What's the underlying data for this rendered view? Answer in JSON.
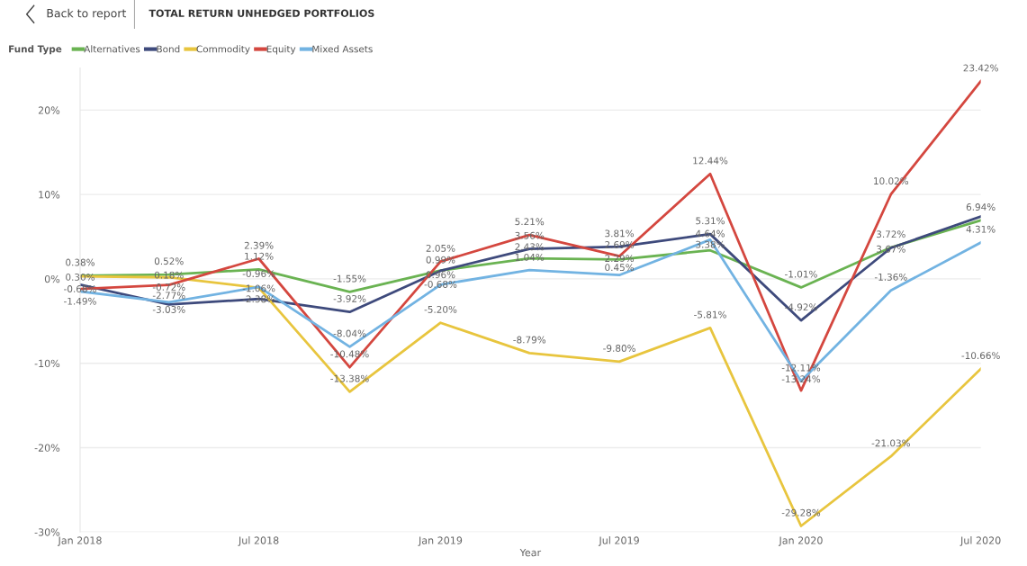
{
  "chart_data": {
    "type": "line",
    "title": "TOTAL RETURN UNHEDGED PORTFOLIOS",
    "annotations": [
      "Back to report"
    ],
    "xlabel": "Year",
    "legend_title": "Fund Type",
    "legend": "top left",
    "grid": "y",
    "marker": "none",
    "line_style": "solid",
    "x": [
      "2018-01",
      "2018-04",
      "2018-07",
      "2018-10",
      "2019-01",
      "2019-04",
      "2019-07",
      "2019-10",
      "2020-01",
      "2020-04",
      "2020-07"
    ],
    "xlim": [
      "2018-01",
      "2020-07"
    ],
    "xticks": [
      {
        "value": "2018-01",
        "label": "Jan 2018"
      },
      {
        "value": "2018-07",
        "label": "Jul 2018"
      },
      {
        "value": "2019-01",
        "label": "Jan 2019"
      },
      {
        "value": "2019-07",
        "label": "Jul 2019"
      },
      {
        "value": "2020-01",
        "label": "Jan 2020"
      },
      {
        "value": "2020-07",
        "label": "Jul 2020"
      }
    ],
    "ylim": [
      -30,
      25
    ],
    "yticks": [
      {
        "value": -30,
        "label": "-30%"
      },
      {
        "value": -20,
        "label": "-20%"
      },
      {
        "value": -10,
        "label": "-10%"
      },
      {
        "value": 0,
        "label": "0%"
      },
      {
        "value": 10,
        "label": "10%"
      },
      {
        "value": 20,
        "label": "20%"
      }
    ],
    "series": [
      {
        "name": "Alternatives",
        "color": "#6ab352",
        "values": [
          0.38,
          0.52,
          1.12,
          -1.55,
          0.99,
          2.43,
          2.29,
          3.38,
          -1.01,
          3.72,
          6.94
        ],
        "value_labels": [
          "0.38%",
          "0.52%",
          "1.12%",
          "-1.55%",
          "0.99%",
          "2.43%",
          "2.29%",
          "3.38%",
          "-1.01%",
          "3.72%",
          "6.94%"
        ]
      },
      {
        "name": "Bond",
        "color": "#3e4a7c",
        "values": [
          -0.68,
          -3.03,
          -2.38,
          -3.92,
          0.96,
          3.56,
          3.81,
          5.31,
          -4.92,
          3.67,
          7.4
        ],
        "value_labels": [
          "-0.68%",
          "-3.03%",
          "-2.38%",
          "-3.92%",
          "0.96%",
          "3.56%",
          "3.81%",
          "5.31%",
          "-4.92%",
          "3.67%",
          null
        ]
      },
      {
        "name": "Commodity",
        "color": "#e8c53e",
        "values": [
          0.3,
          0.18,
          -1.06,
          -13.38,
          -5.2,
          -8.79,
          -9.8,
          -5.81,
          -29.28,
          -21.03,
          -10.66
        ],
        "value_labels": [
          "0.30%",
          "0.18%",
          "-1.06%",
          "-13.38%",
          "-5.20%",
          "-8.79%",
          "-9.80%",
          "-5.81%",
          "-29.28%",
          "-21.03%",
          "-10.66%"
        ]
      },
      {
        "name": "Equity",
        "color": "#d4473f",
        "values": [
          -1.2,
          -0.72,
          2.39,
          -10.48,
          2.05,
          5.21,
          2.69,
          12.44,
          -13.24,
          10.02,
          23.42
        ],
        "value_labels": [
          null,
          "-0.72%",
          "2.39%",
          "-10.48%",
          "2.05%",
          "5.21%",
          "2.69%",
          "12.44%",
          "-13.24%",
          "10.02%",
          "23.42%"
        ]
      },
      {
        "name": "Mixed Assets",
        "color": "#72b3e2",
        "values": [
          -1.49,
          -2.77,
          -0.96,
          -8.04,
          -0.68,
          1.04,
          0.45,
          4.64,
          -12.11,
          -1.36,
          4.31
        ],
        "value_labels": [
          "-1.49%",
          "-2.77%",
          "-0.96%",
          "-8.04%",
          "-0.68%",
          "1.04%",
          "0.45%",
          "4.64%",
          "-12.11%",
          "-1.36%",
          "4.31%"
        ]
      }
    ]
  }
}
